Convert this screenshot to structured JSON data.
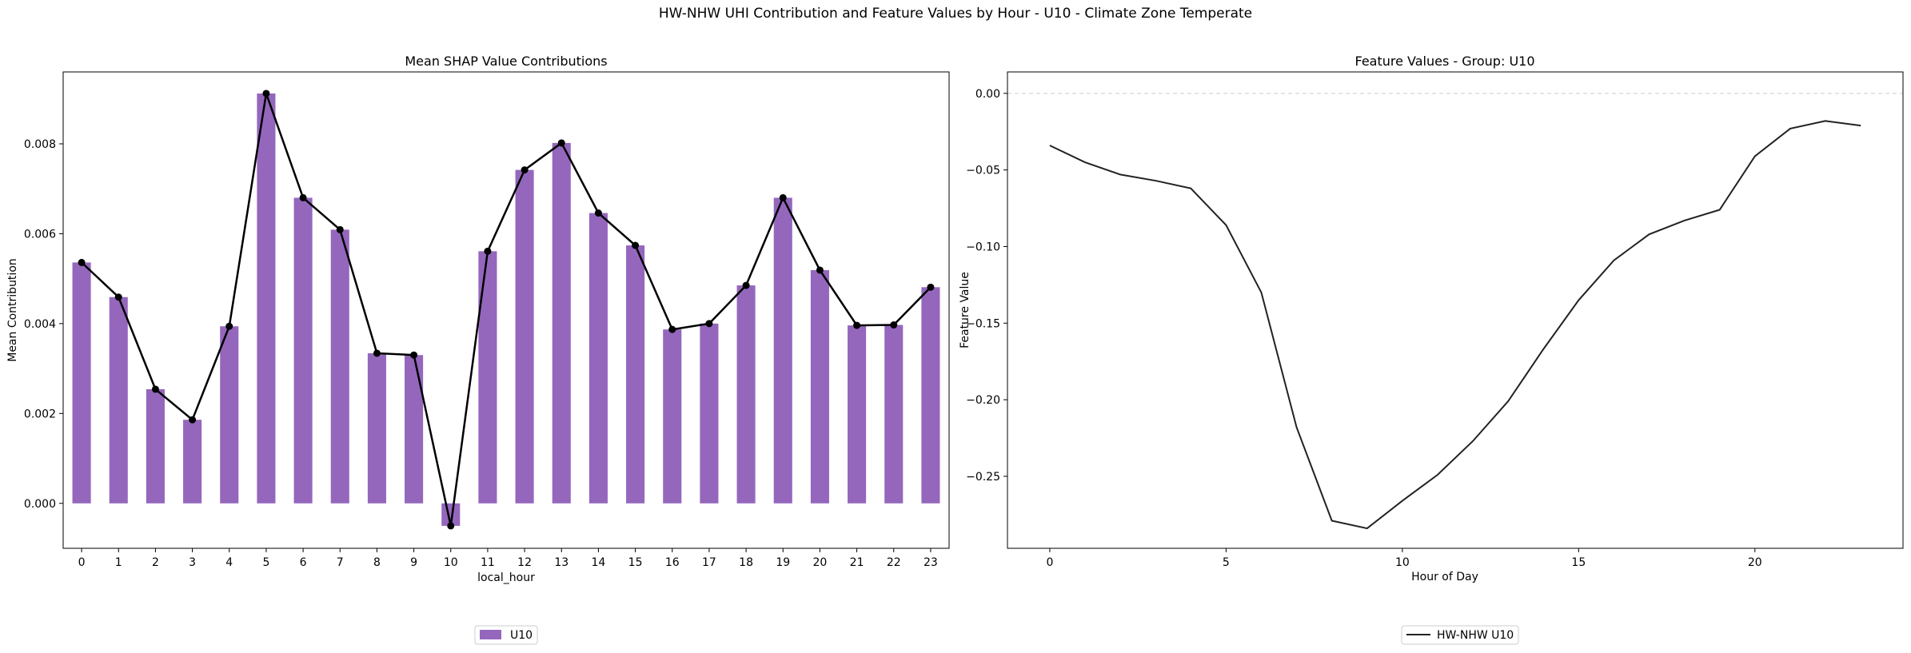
{
  "suptitle": "HW-NHW UHI Contribution and Feature Values by Hour - U10 - Climate Zone Temperate",
  "chart_data": [
    {
      "type": "bar",
      "title": "Mean SHAP Value Contributions",
      "xlabel": "local_hour",
      "ylabel": "Mean Contribution",
      "categories": [
        "0",
        "1",
        "2",
        "3",
        "4",
        "5",
        "6",
        "7",
        "8",
        "9",
        "10",
        "11",
        "12",
        "13",
        "14",
        "15",
        "16",
        "17",
        "18",
        "19",
        "20",
        "21",
        "22",
        "23"
      ],
      "series": [
        {
          "name": "U10",
          "values": [
            0.00536,
            0.00459,
            0.00254,
            0.00186,
            0.00394,
            0.00912,
            0.0068,
            0.00609,
            0.00334,
            0.0033,
            -0.0005,
            0.00561,
            0.00742,
            0.00802,
            0.00646,
            0.00574,
            0.00387,
            0.004,
            0.00485,
            0.0068,
            0.00519,
            0.00396,
            0.00397,
            0.00481
          ],
          "color": "#9467bd"
        }
      ],
      "line_overlay": {
        "color": "#000000",
        "marker": "circle"
      },
      "ylim": [
        -0.001,
        0.0096
      ],
      "yticks": [
        "0.000",
        "0.002",
        "0.004",
        "0.006",
        "0.008"
      ],
      "ytick_values": [
        0,
        0.002,
        0.004,
        0.006,
        0.008
      ],
      "grid": false,
      "legend_position": "below"
    },
    {
      "type": "line",
      "title": "Feature Values - Group: U10",
      "xlabel": "Hour of Day",
      "ylabel": "Feature Value",
      "x": [
        0,
        1,
        2,
        3,
        4,
        5,
        6,
        7,
        8,
        9,
        10,
        11,
        12,
        13,
        14,
        15,
        16,
        17,
        18,
        19,
        20,
        21,
        22,
        23
      ],
      "series": [
        {
          "name": "HW-NHW U10",
          "values": [
            -0.034,
            -0.045,
            -0.053,
            -0.057,
            -0.062,
            -0.086,
            -0.13,
            -0.218,
            -0.279,
            -0.284,
            -0.266,
            -0.249,
            -0.227,
            -0.201,
            -0.167,
            -0.135,
            -0.109,
            -0.092,
            -0.083,
            -0.076,
            -0.041,
            -0.023,
            -0.018,
            -0.021
          ],
          "color": "#222222"
        }
      ],
      "xlim": [
        -1.2,
        24.2
      ],
      "ylim": [
        -0.297,
        0.014
      ],
      "xticks": [
        "0",
        "5",
        "10",
        "15",
        "20"
      ],
      "xtick_values": [
        0,
        5,
        10,
        15,
        20
      ],
      "yticks": [
        "0.00",
        "−0.05",
        "−0.10",
        "−0.15",
        "−0.20",
        "−0.25"
      ],
      "ytick_values": [
        0,
        -0.05,
        -0.1,
        -0.15,
        -0.2,
        -0.25
      ],
      "reference_line": {
        "y": 0,
        "style": "dashed",
        "color": "#cccccc"
      },
      "grid": false,
      "legend_position": "below"
    }
  ]
}
